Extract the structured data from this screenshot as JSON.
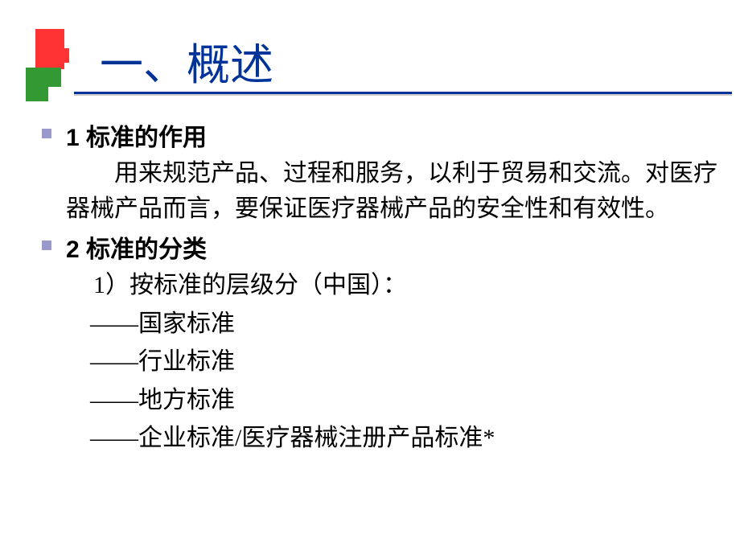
{
  "title": "一、概述",
  "section1": {
    "heading": "1  标准的作用",
    "body": "用来规范产品、过程和服务，以利于贸易和交流。对医疗器械产品而言，要保证医疗器械产品的安全性和有效性。"
  },
  "section2": {
    "heading": "2  标准的分类",
    "subheading": "1）按标准的层级分（中国）：",
    "items": [
      "——国家标准",
      "——行业标准",
      "——地方标准",
      "——企业标准/医疗器械注册产品标准*"
    ]
  },
  "colors": {
    "title_color": "#003399",
    "bullet_color": "#9999cc",
    "green_decoration": "#339933",
    "red_decoration": "#ff3333",
    "background": "#ffffff",
    "text_color": "#000000"
  },
  "typography": {
    "title_fontsize": 54,
    "heading_fontsize": 30,
    "body_fontsize": 30
  }
}
